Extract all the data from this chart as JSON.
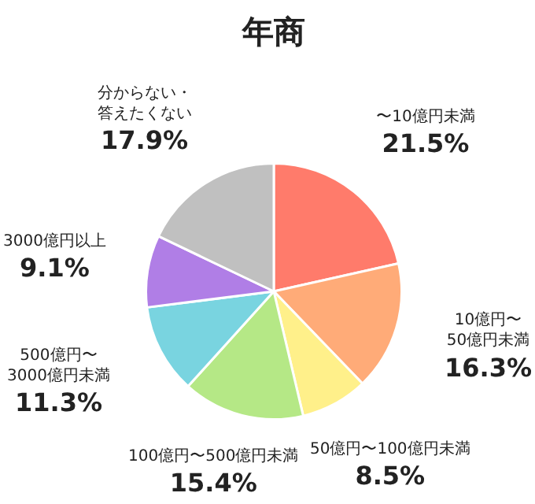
{
  "chart_data": {
    "type": "pie",
    "title": "年商",
    "categories": [
      "〜10億円未満",
      "10億円〜50億円未満",
      "50億円〜100億円未満",
      "100億円〜500億円未満",
      "500億円〜3000億円未満",
      "3000億円以上",
      "分からない・答えたくない"
    ],
    "values": [
      21.5,
      16.3,
      8.5,
      15.4,
      11.3,
      9.1,
      17.9
    ],
    "colors": [
      "#ff7b6b",
      "#ffab78",
      "#fff08a",
      "#b5e886",
      "#79d4e0",
      "#b07ee6",
      "#c0c0c0"
    ],
    "value_labels": [
      "21.5%",
      "16.3%",
      "8.5%",
      "15.4%",
      "11.3%",
      "9.1%",
      "17.9%"
    ],
    "legend": false
  }
}
